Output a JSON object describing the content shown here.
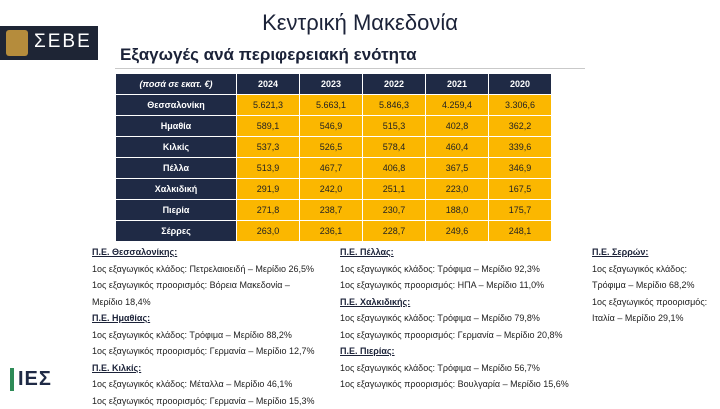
{
  "header": {
    "title": "Κεντρική Μακεδονία",
    "subtitle": "Εξαγωγές ανά περιφερειακή ενότητα",
    "logo": "ΣΕΒΕ"
  },
  "table": {
    "columns": [
      "(ποσά σε εκατ. €)",
      "2024",
      "2023",
      "2022",
      "2021",
      "2020"
    ],
    "rows": [
      [
        "Θεσσαλονίκη",
        "5.621,3",
        "5.663,1",
        "5.846,3",
        "4.259,4",
        "3.306,6"
      ],
      [
        "Ημαθία",
        "589,1",
        "546,9",
        "515,3",
        "402,8",
        "362,2"
      ],
      [
        "Κιλκίς",
        "537,3",
        "526,5",
        "578,4",
        "460,4",
        "339,6"
      ],
      [
        "Πέλλα",
        "513,9",
        "467,7",
        "406,8",
        "367,5",
        "346,9"
      ],
      [
        "Χαλκιδική",
        "291,9",
        "242,0",
        "251,1",
        "223,0",
        "167,5"
      ],
      [
        "Πιερία",
        "271,8",
        "238,7",
        "230,7",
        "188,0",
        "175,7"
      ],
      [
        "Σέρρες",
        "263,0",
        "236,1",
        "228,7",
        "249,6",
        "248,1"
      ]
    ]
  },
  "notes": [
    [
      {
        "heading": "Π.Ε. Θεσσαλονίκης:",
        "lines": [
          "1ος εξαγωγικός κλάδος: Πετρελαιοειδή – Μερίδιο 26,5%",
          "1ος εξαγωγικός προορισμός: Βόρεια Μακεδονία –",
          "Μερίδιο 18,4%"
        ]
      },
      {
        "heading": "Π.Ε. Ημαθίας:",
        "lines": [
          "1ος εξαγωγικός κλάδος: Τρόφιμα – Μερίδιο 88,2%",
          "1ος εξαγωγικός προορισμός: Γερμανία – Μερίδιο 12,7%"
        ]
      },
      {
        "heading": "Π.Ε. Κιλκίς:",
        "lines": [
          "1ος εξαγωγικός κλάδος: Μέταλλα – Μερίδιο 46,1%",
          "1ος εξαγωγικός προορισμός: Γερμανία – Μερίδιο 15,3%"
        ]
      }
    ],
    [
      {
        "heading": "Π.Ε. Πέλλας:",
        "lines": [
          "1ος εξαγωγικός κλάδος: Τρόφιμα – Μερίδιο 92,3%",
          "1ος εξαγωγικός προορισμός: ΗΠΑ – Μερίδιο 11,0%"
        ]
      },
      {
        "heading": "Π.Ε. Χαλκιδικής:",
        "lines": [
          "1ος εξαγωγικός κλάδος: Τρόφιμα – Μερίδιο 79,8%",
          "1ος εξαγωγικός προορισμός: Γερμανία – Μερίδιο 20,8%"
        ]
      },
      {
        "heading": "Π.Ε. Πιερίας:",
        "lines": [
          "1ος εξαγωγικός κλάδος: Τρόφιμα – Μερίδιο 56,7%",
          "1ος εξαγωγικός προορισμός: Βουλγαρία – Μερίδιο 15,6%"
        ]
      }
    ],
    [
      {
        "heading": "Π.Ε. Σερρών:",
        "lines": [
          "1ος εξαγωγικός κλάδος:",
          "Τρόφιμα – Μερίδιο 68,2%",
          "1ος εξαγωγικός προορισμός:",
          "Ιταλία – Μερίδιο 29,1%"
        ]
      }
    ]
  ],
  "footer": {
    "logo": "ΙΕΣ"
  }
}
